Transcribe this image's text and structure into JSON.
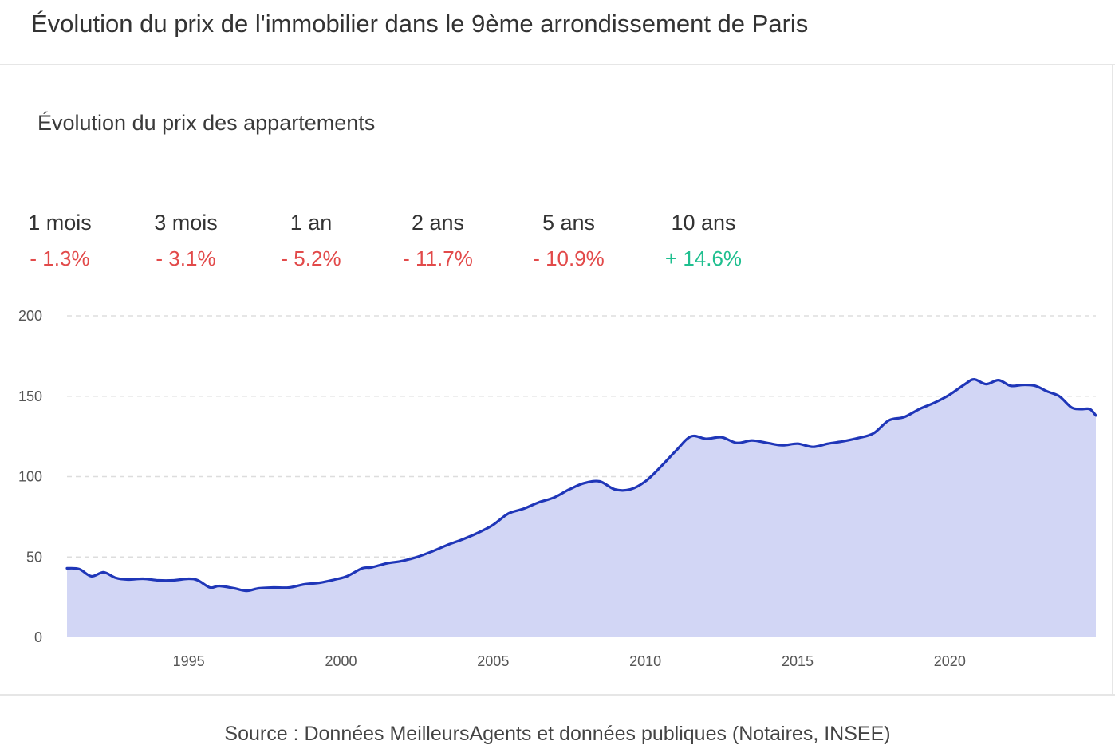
{
  "header": {
    "title": "Évolution du prix de l'immobilier dans le 9ème arrondissement de Paris"
  },
  "section": {
    "title": "Évolution du prix des appartements"
  },
  "stats": [
    {
      "label": "1 mois",
      "value": "- 1.3%",
      "trend": "negative"
    },
    {
      "label": "3 mois",
      "value": "- 3.1%",
      "trend": "negative"
    },
    {
      "label": "1 an",
      "value": "- 5.2%",
      "trend": "negative"
    },
    {
      "label": "2 ans",
      "value": "- 11.7%",
      "trend": "negative"
    },
    {
      "label": "5 ans",
      "value": "- 10.9%",
      "trend": "negative"
    },
    {
      "label": "10 ans",
      "value": "+ 14.6%",
      "trend": "positive"
    }
  ],
  "colors": {
    "negative": "#e24a4a",
    "positive": "#1fbf8f",
    "line": "#1f36b8",
    "fill": "#d2d6f5",
    "grid": "#dddddd"
  },
  "chart_data": {
    "type": "area",
    "title": "",
    "xlabel": "",
    "ylabel": "",
    "xlim": [
      1991.0,
      2024.8
    ],
    "ylim": [
      0,
      200
    ],
    "yticks": [
      0,
      50,
      100,
      150,
      200
    ],
    "xticks": [
      1995,
      2000,
      2005,
      2010,
      2015,
      2020
    ],
    "grid": "horizontal dashed",
    "legend": "none",
    "series": [
      {
        "name": "",
        "x": [
          1991.0,
          1991.4,
          1991.8,
          1992.2,
          1992.6,
          1993.0,
          1993.5,
          1994.0,
          1994.5,
          1995.0,
          1995.3,
          1995.7,
          1996.0,
          1996.5,
          1996.9,
          1997.3,
          1997.8,
          1998.3,
          1998.8,
          1999.3,
          1999.8,
          2000.2,
          2000.7,
          2001.0,
          2001.5,
          2002.0,
          2002.5,
          2003.0,
          2003.5,
          2004.0,
          2004.5,
          2005.0,
          2005.5,
          2006.0,
          2006.5,
          2007.0,
          2007.5,
          2008.0,
          2008.5,
          2009.0,
          2009.5,
          2010.0,
          2010.5,
          2011.0,
          2011.5,
          2012.0,
          2012.5,
          2013.0,
          2013.5,
          2014.0,
          2014.5,
          2015.0,
          2015.5,
          2016.0,
          2016.5,
          2017.0,
          2017.5,
          2018.0,
          2018.5,
          2019.0,
          2019.5,
          2020.0,
          2020.5,
          2020.8,
          2021.2,
          2021.6,
          2022.0,
          2022.4,
          2022.8,
          2023.2,
          2023.6,
          2024.0,
          2024.3,
          2024.6,
          2024.8
        ],
        "values": [
          43,
          42.5,
          38,
          40.5,
          37,
          36,
          36.5,
          35.5,
          35.5,
          36.5,
          35.5,
          31,
          32,
          30.5,
          29,
          30.5,
          31,
          31,
          33,
          34,
          36,
          38,
          43,
          43.5,
          46,
          47.5,
          50,
          53.5,
          57.5,
          61,
          65,
          70,
          77,
          80,
          84,
          87,
          92,
          96,
          97,
          92,
          92,
          97,
          106,
          116,
          125,
          123.5,
          124.5,
          121,
          122.5,
          121,
          119.5,
          120.5,
          118.5,
          120.5,
          122,
          124,
          127,
          135,
          137,
          142,
          146,
          151,
          157.5,
          160.5,
          157.5,
          160,
          156.5,
          157,
          156.5,
          153,
          150,
          143,
          142,
          142,
          138
        ]
      }
    ]
  },
  "footer": {
    "source": "Source : Données MeilleursAgents et données publiques (Notaires, INSEE)"
  }
}
